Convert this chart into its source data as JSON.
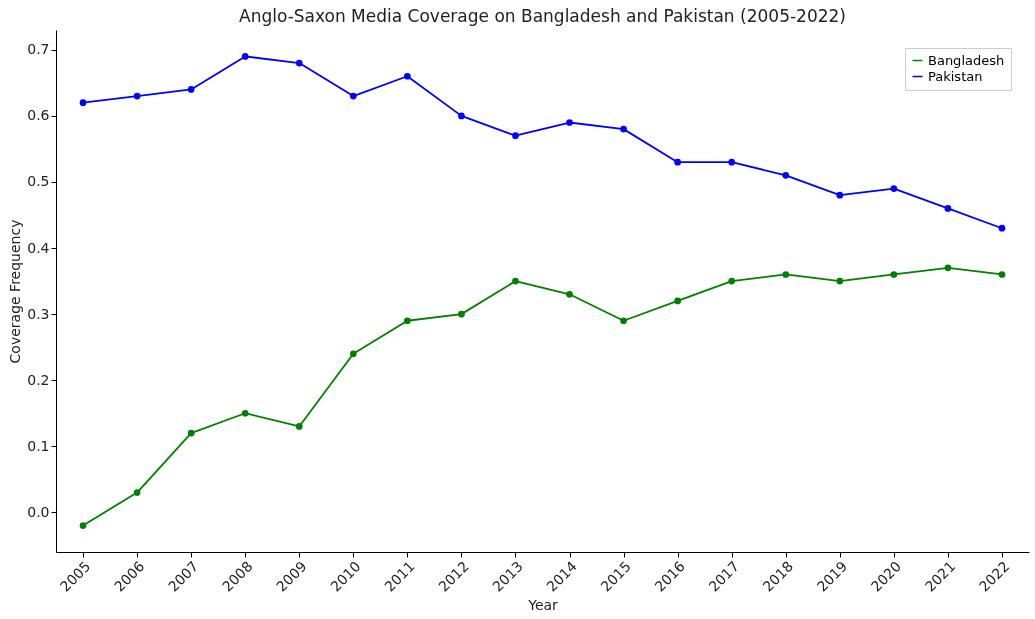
{
  "chart_data": {
    "type": "line",
    "title": "Anglo-Saxon Media Coverage on Bangladesh and Pakistan (2005-2022)",
    "xlabel": "Year",
    "ylabel": "Coverage Frequency",
    "categories": [
      "2005",
      "2006",
      "2007",
      "2008",
      "2009",
      "2010",
      "2011",
      "2012",
      "2013",
      "2014",
      "2015",
      "2016",
      "2017",
      "2018",
      "2019",
      "2020",
      "2021",
      "2022"
    ],
    "series": [
      {
        "name": "Bangladesh",
        "color": "#008000",
        "values": [
          -0.02,
          0.03,
          0.12,
          0.15,
          0.13,
          0.24,
          0.29,
          0.3,
          0.35,
          0.33,
          0.29,
          0.32,
          0.35,
          0.36,
          0.35,
          0.36,
          0.37,
          0.36
        ]
      },
      {
        "name": "Pakistan",
        "color": "#0000ff",
        "values": [
          0.62,
          0.63,
          0.64,
          0.69,
          0.68,
          0.63,
          0.66,
          0.6,
          0.57,
          0.59,
          0.58,
          0.53,
          0.53,
          0.51,
          0.48,
          0.49,
          0.46,
          0.43
        ]
      }
    ],
    "ylim": [
      -0.06,
      0.73
    ],
    "yticks": [
      {
        "value": 0,
        "label": "0.0"
      },
      0.1,
      0.2,
      0.3,
      0.4,
      0.5,
      0.6,
      0.7
    ],
    "grid": false,
    "legend": "top right",
    "marker": "circle",
    "line_style": "solid"
  }
}
